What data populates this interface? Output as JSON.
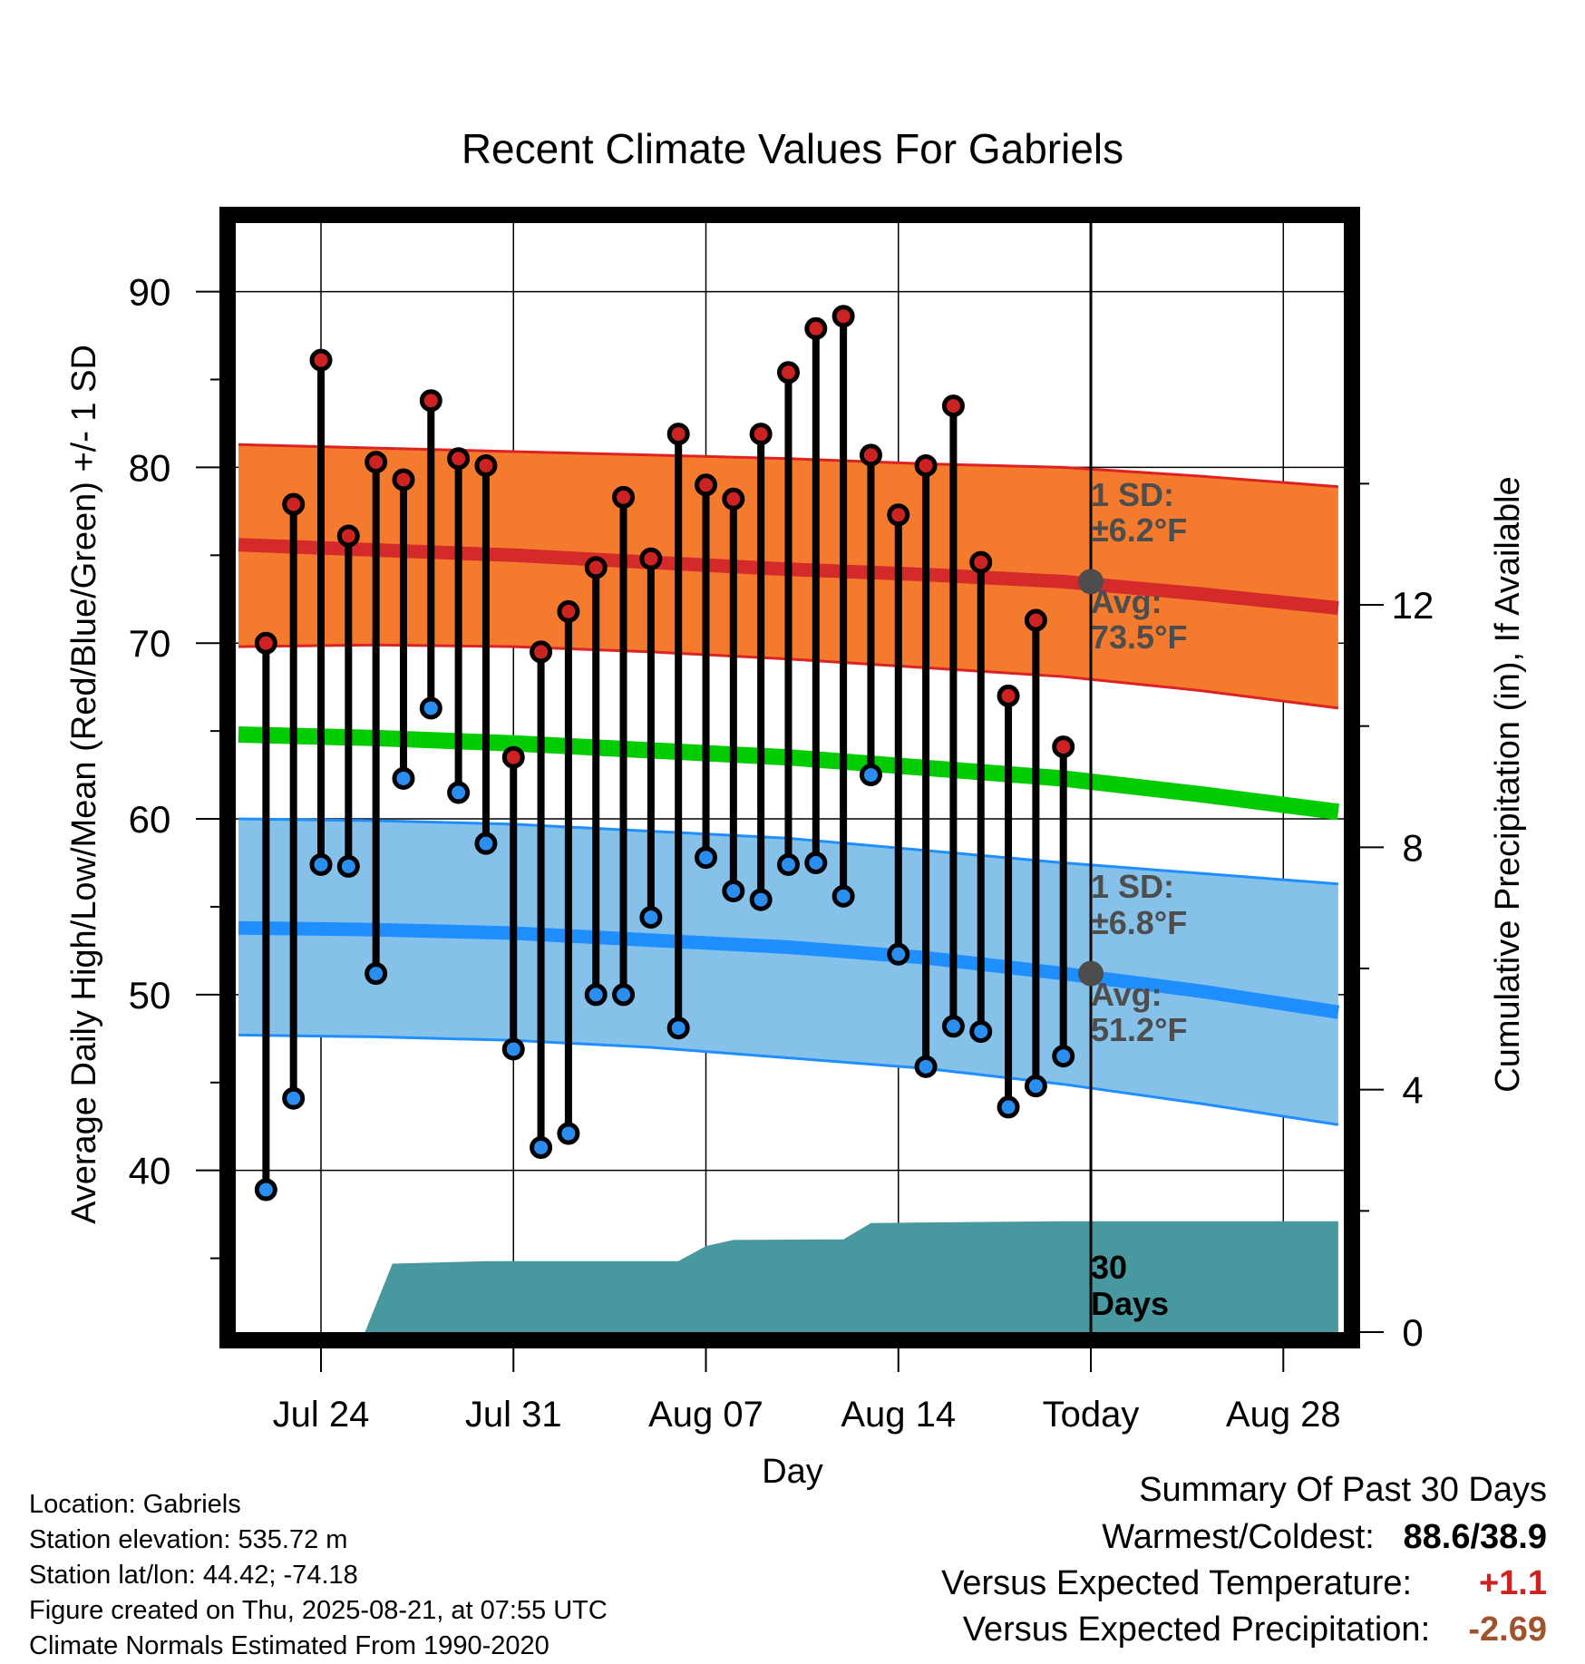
{
  "chart_data": {
    "type": "line",
    "title": "Recent Climate Values For Gabriels",
    "xlabel": "Day",
    "ylabel": "Average Daily High/Low/Mean (Red/Blue/Green) +/- 1 SD",
    "y2label": "Cumulative Precipitation (in), If Available",
    "ylim": [
      30.8,
      93.9
    ],
    "y2lim": [
      0,
      18.3
    ],
    "yticks": [
      40,
      50,
      60,
      70,
      80,
      90
    ],
    "y2ticks": [
      0,
      4,
      8,
      12
    ],
    "xticks": [
      {
        "label": "Jul 24",
        "day": 3
      },
      {
        "label": "Jul 31",
        "day": 10
      },
      {
        "label": "Aug 07",
        "day": 17
      },
      {
        "label": "Aug 14",
        "day": 24
      },
      {
        "label": "Today",
        "day": 31
      },
      {
        "label": "Aug 28",
        "day": 38
      }
    ],
    "xlim": [
      -0.1,
      40.2
    ],
    "days": [
      1,
      2,
      3,
      4,
      5,
      6,
      7,
      8,
      9,
      10,
      11,
      12,
      13,
      14,
      15,
      16,
      17,
      18,
      19,
      20,
      21,
      22,
      23,
      24,
      25,
      26,
      27,
      28,
      29,
      30
    ],
    "high": [
      70.0,
      77.9,
      86.1,
      76.1,
      80.3,
      79.3,
      83.8,
      80.5,
      80.1,
      63.5,
      69.5,
      71.8,
      74.3,
      78.3,
      74.8,
      81.9,
      79.0,
      78.2,
      81.9,
      85.4,
      87.9,
      88.6,
      80.7,
      77.3,
      80.1,
      83.5,
      74.6,
      67.0,
      71.3,
      64.1
    ],
    "low": [
      38.9,
      44.1,
      57.4,
      57.3,
      51.2,
      62.3,
      66.3,
      61.5,
      58.6,
      46.9,
      41.3,
      42.1,
      50.0,
      50.0,
      54.4,
      48.1,
      57.8,
      55.9,
      55.4,
      57.4,
      57.5,
      55.6,
      62.5,
      52.3,
      45.9,
      48.2,
      47.9,
      43.6,
      44.8,
      46.5
    ],
    "normals_x": [
      0,
      5,
      10,
      15,
      20,
      25,
      30,
      35,
      40
    ],
    "normal_high": [
      75.6,
      75.3,
      75.0,
      74.6,
      74.2,
      73.9,
      73.5,
      72.8,
      72.0
    ],
    "normal_high_upper": [
      81.3,
      81.1,
      80.9,
      80.7,
      80.5,
      80.2,
      80.0,
      79.5,
      78.9
    ],
    "normal_high_lower": [
      69.8,
      69.9,
      69.8,
      69.5,
      69.1,
      68.6,
      68.1,
      67.3,
      66.3
    ],
    "normal_mean": [
      64.8,
      64.6,
      64.3,
      63.9,
      63.5,
      62.9,
      62.3,
      61.4,
      60.4
    ],
    "normal_low": [
      53.8,
      53.7,
      53.5,
      53.1,
      52.7,
      52.1,
      51.2,
      50.2,
      49.0
    ],
    "normal_low_upper": [
      60.0,
      59.9,
      59.7,
      59.3,
      58.9,
      58.2,
      57.5,
      56.9,
      56.3
    ],
    "normal_low_lower": [
      47.7,
      47.6,
      47.4,
      47.0,
      46.4,
      45.8,
      44.9,
      43.8,
      42.6
    ],
    "precip_x": [
      4.6,
      5.6,
      9,
      16,
      17,
      18,
      22,
      23,
      30,
      40
    ],
    "precip": [
      0,
      1.13,
      1.17,
      1.17,
      1.42,
      1.52,
      1.53,
      1.8,
      1.83,
      1.83
    ],
    "today_day": 31,
    "today_high_normal": 73.5,
    "today_low_normal": 51.2,
    "colors": {
      "high_marker": "#cc2222",
      "low_marker": "#2a8ef0",
      "high_band": "#f47a2e",
      "low_band": "#85c1e9",
      "normal_high_line": "#d42a2a",
      "normal_low_line": "#1f8fff",
      "mean_line": "#00cc00",
      "band_edge_high": "#dd2222",
      "band_edge_low": "#1f8fff",
      "precip_fill": "#4898a0",
      "annotation": "#4d4d4d"
    }
  },
  "annotations": {
    "high_sd": "1 SD:",
    "high_sd_val": "±6.2°F",
    "high_avg": "Avg:",
    "high_avg_val": "73.5°F",
    "low_sd": "1 SD:",
    "low_sd_val": "±6.8°F",
    "low_avg": "Avg:",
    "low_avg_val": "51.2°F",
    "days_num": "30",
    "days_word": "Days"
  },
  "info": {
    "location": "Location: Gabriels",
    "elevation": "Station elevation: 535.72 m",
    "latlon": "Station lat/lon: 44.42; -74.18",
    "created": "Figure created on Thu, 2025-08-21, at 07:55 UTC",
    "normals": "Climate Normals Estimated From 1990-2020"
  },
  "summary": {
    "title": "Summary Of Past 30 Days",
    "warm_cold_label": "Warmest/Coldest:",
    "warm_cold_value": "88.6/38.9",
    "temp_label": "Versus Expected Temperature:",
    "temp_value": "+1.1",
    "temp_color": "#cc2222",
    "precip_label": "Versus Expected Precipitation:",
    "precip_value": "-2.69",
    "precip_color": "#a0522d"
  }
}
